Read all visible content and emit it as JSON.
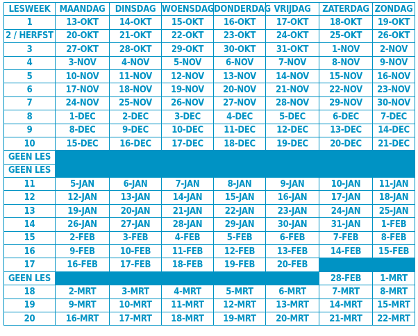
{
  "headers": [
    "LESWEEK",
    "MAANDAG",
    "DINSDAG",
    "WOENSDAG",
    "DONDERDAG",
    "VRIJDAG",
    "ZATERDAG",
    "ZONDAG"
  ],
  "fill_color": "#0093c4",
  "rows": [
    [
      "1",
      "13-OKT",
      "14-OKT",
      "15-OKT",
      "16-OKT",
      "17-OKT",
      "18-OKT",
      "19-OKT"
    ],
    [
      "2 / HERFST",
      "20-OKT",
      "21-OKT",
      "22-OKT",
      "23-OKT",
      "24-OKT",
      "25-OKT",
      "26-OKT"
    ],
    [
      "3",
      "27-OKT",
      "28-OKT",
      "29-OKT",
      "30-OKT",
      "31-OKT",
      "1-NOV",
      "2-NOV"
    ],
    [
      "4",
      "3-NOV",
      "4-NOV",
      "5-NOV",
      "6-NOV",
      "7-NOV",
      "8-NOV",
      "9-NOV"
    ],
    [
      "5",
      "10-NOV",
      "11-NOV",
      "12-NOV",
      "13-NOV",
      "14-NOV",
      "15-NOV",
      "16-NOV"
    ],
    [
      "6",
      "17-NOV",
      "18-NOV",
      "19-NOV",
      "20-NOV",
      "21-NOV",
      "22-NOV",
      "23-NOV"
    ],
    [
      "7",
      "24-NOV",
      "25-NOV",
      "26-NOV",
      "27-NOV",
      "28-NOV",
      "29-NOV",
      "30-NOV"
    ],
    [
      "8",
      "1-DEC",
      "2-DEC",
      "3-DEC",
      "4-DEC",
      "5-DEC",
      "6-DEC",
      "7-DEC"
    ],
    [
      "9",
      "8-DEC",
      "9-DEC",
      "10-DEC",
      "11-DEC",
      "12-DEC",
      "13-DEC",
      "14-DEC"
    ],
    [
      "10",
      "15-DEC",
      "16-DEC",
      "17-DEC",
      "18-DEC",
      "19-DEC",
      "20-DEC",
      "21-DEC"
    ],
    [
      "GEEN LES",
      null,
      null,
      null,
      null,
      null,
      null,
      null
    ],
    [
      "GEEN LES",
      null,
      null,
      null,
      null,
      null,
      null,
      null
    ],
    [
      "11",
      "5-JAN",
      "6-JAN",
      "7-JAN",
      "8-JAN",
      "9-JAN",
      "10-JAN",
      "11-JAN"
    ],
    [
      "12",
      "12-JAN",
      "13-JAN",
      "14-JAN",
      "15-JAN",
      "16-JAN",
      "17-JAN",
      "18-JAN"
    ],
    [
      "13",
      "19-JAN",
      "20-JAN",
      "21-JAN",
      "22-JAN",
      "23-JAN",
      "24-JAN",
      "25-JAN"
    ],
    [
      "14",
      "26-JAN",
      "27-JAN",
      "28-JAN",
      "29-JAN",
      "30-JAN",
      "31-JAN",
      "1-FEB"
    ],
    [
      "15",
      "2-FEB",
      "3-FEB",
      "4-FEB",
      "5-FEB",
      "6-FEB",
      "7-FEB",
      "8-FEB"
    ],
    [
      "16",
      "9-FEB",
      "10-FEB",
      "11-FEB",
      "12-FEB",
      "13-FEB",
      "14-FEB",
      "15-FEB"
    ],
    [
      "17",
      "16-FEB",
      "17-FEB",
      "18-FEB",
      "19-FEB",
      "20-FEB",
      null,
      null
    ],
    [
      "GEEN LES",
      null,
      null,
      null,
      null,
      null,
      "28-FEB",
      "1-MRT"
    ],
    [
      "18",
      "2-MRT",
      "3-MRT",
      "4-MRT",
      "5-MRT",
      "6-MRT",
      "7-MRT",
      "8-MRT"
    ],
    [
      "19",
      "9-MRT",
      "10-MRT",
      "11-MRT",
      "12-MRT",
      "13-MRT",
      "14-MRT",
      "15-MRT"
    ],
    [
      "20",
      "16-MRT",
      "17-MRT",
      "18-MRT",
      "19-MRT",
      "20-MRT",
      "21-MRT",
      "22-MRT"
    ]
  ]
}
